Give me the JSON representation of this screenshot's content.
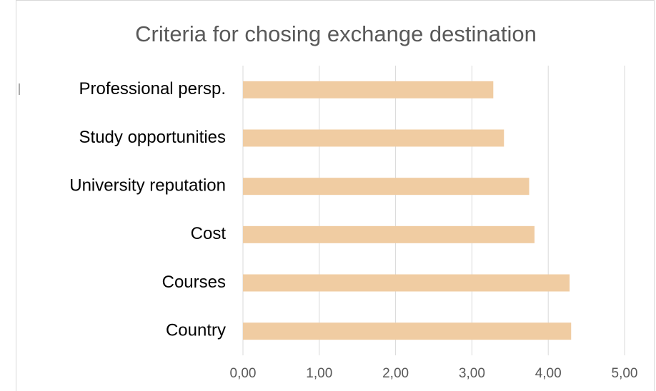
{
  "chart_data": {
    "type": "barh",
    "title": "Criteria for chosing exchange destination",
    "categories": [
      "Professional persp.",
      "Study opportunities",
      "University reputation",
      "Cost",
      "Courses",
      "Country"
    ],
    "values": [
      3.28,
      3.42,
      3.75,
      3.82,
      4.28,
      4.3
    ],
    "color": "#f0cca2",
    "xlim": [
      0,
      5
    ],
    "xticks": [
      {
        "value": 0,
        "label": "0,00"
      },
      {
        "value": 1,
        "label": "1,00"
      },
      {
        "value": 2,
        "label": "2,00"
      },
      {
        "value": 3,
        "label": "3,00"
      },
      {
        "value": 4,
        "label": "4,00"
      },
      {
        "value": 5,
        "label": "5,00"
      }
    ],
    "grid": true
  }
}
